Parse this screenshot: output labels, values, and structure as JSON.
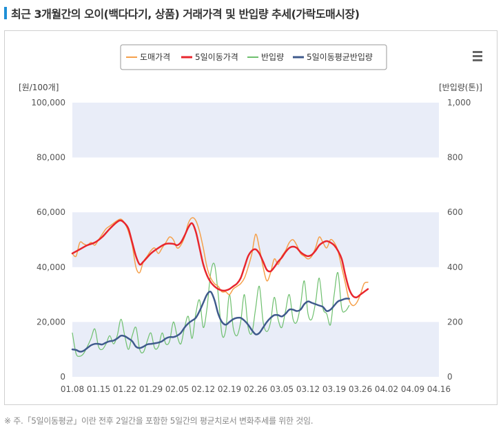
{
  "title": "최근 3개월간의 오이(백다다기, 상품) 거래가격 및 반입량 추세(가락도매시장)",
  "footnote": "※ 주.「5일이동평균」이란 전후 2일간을 포함한 5일간의 평균치로서 변화추세를 위한 것임.",
  "menu_icon": "hamburger-menu-icon",
  "chart_data": {
    "type": "line",
    "y_left_label": "[원/100개]",
    "y_right_label": "[반입량(톤)]",
    "y_left_ticks": [
      "0",
      "20,000",
      "40,000",
      "60,000",
      "80,000",
      "100,000"
    ],
    "y_right_ticks": [
      "0",
      "200",
      "400",
      "600",
      "800",
      "1,000"
    ],
    "y_left_range": [
      0,
      100000
    ],
    "y_right_range": [
      0,
      1000
    ],
    "x_ticks": [
      "01.08",
      "01.15",
      "01.22",
      "01.29",
      "02.05",
      "02.12",
      "02.19",
      "02.26",
      "03.05",
      "03.12",
      "03.19",
      "03.26",
      "04.02",
      "04.09",
      "04.16"
    ],
    "x_range_days": [
      0,
      98
    ],
    "grid": "alternating horizontal bands",
    "legend_position": "top-center",
    "series": [
      {
        "name": "도매가격",
        "axis": "left",
        "color": "#f5a04a",
        "points": [
          [
            0,
            45000
          ],
          [
            1,
            44000
          ],
          [
            2,
            49000
          ],
          [
            3,
            48500
          ],
          [
            4,
            48000
          ],
          [
            5,
            49000
          ],
          [
            6,
            48000
          ],
          [
            7,
            50000
          ],
          [
            8,
            52000
          ],
          [
            9,
            54000
          ],
          [
            10,
            55000
          ],
          [
            11,
            56000
          ],
          [
            12,
            57000
          ],
          [
            13,
            57500
          ],
          [
            14,
            56000
          ],
          [
            15,
            53000
          ],
          [
            16,
            48000
          ],
          [
            17,
            40000
          ],
          [
            18,
            38000
          ],
          [
            19,
            42000
          ],
          [
            20,
            44000
          ],
          [
            21,
            46000
          ],
          [
            22,
            47000
          ],
          [
            23,
            45000
          ],
          [
            24,
            47000
          ],
          [
            25,
            49000
          ],
          [
            26,
            51000
          ],
          [
            27,
            50000
          ],
          [
            28,
            47000
          ],
          [
            29,
            48000
          ],
          [
            30,
            51000
          ],
          [
            31,
            56000
          ],
          [
            32,
            58000
          ],
          [
            33,
            57000
          ],
          [
            34,
            53000
          ],
          [
            35,
            47000
          ],
          [
            36,
            40000
          ],
          [
            37,
            36000
          ],
          [
            38,
            34000
          ],
          [
            39,
            33000
          ],
          [
            40,
            31000
          ],
          [
            41,
            31000
          ],
          [
            42,
            30000
          ],
          [
            43,
            32000
          ],
          [
            44,
            33000
          ],
          [
            45,
            34000
          ],
          [
            46,
            36000
          ],
          [
            47,
            40000
          ],
          [
            48,
            45000
          ],
          [
            49,
            52000
          ],
          [
            50,
            47000
          ],
          [
            51,
            40000
          ],
          [
            52,
            35000
          ],
          [
            53,
            38000
          ],
          [
            54,
            43000
          ],
          [
            55,
            41000
          ],
          [
            56,
            44000
          ],
          [
            57,
            46000
          ],
          [
            58,
            49000
          ],
          [
            59,
            50000
          ],
          [
            60,
            48000
          ],
          [
            61,
            45000
          ],
          [
            62,
            44000
          ],
          [
            63,
            43000
          ],
          [
            64,
            44000
          ],
          [
            65,
            47000
          ],
          [
            66,
            51000
          ],
          [
            67,
            49000
          ],
          [
            68,
            47000
          ],
          [
            69,
            50000
          ],
          [
            70,
            49000
          ],
          [
            71,
            46000
          ],
          [
            72,
            40000
          ],
          [
            73,
            34000
          ],
          [
            74,
            28000
          ],
          [
            75,
            26000
          ],
          [
            76,
            27000
          ],
          [
            77,
            30000
          ],
          [
            78,
            34000
          ],
          [
            79,
            34500
          ]
        ]
      },
      {
        "name": "5일이동가격",
        "axis": "left",
        "color": "#e8262d",
        "points": [
          [
            0,
            45000
          ],
          [
            2,
            46500
          ],
          [
            4,
            48000
          ],
          [
            6,
            49000
          ],
          [
            8,
            51000
          ],
          [
            10,
            54000
          ],
          [
            12,
            56500
          ],
          [
            13,
            57000
          ],
          [
            14,
            56000
          ],
          [
            15,
            54000
          ],
          [
            16,
            49000
          ],
          [
            17,
            44000
          ],
          [
            18,
            41000
          ],
          [
            19,
            42000
          ],
          [
            21,
            45000
          ],
          [
            23,
            47000
          ],
          [
            25,
            48500
          ],
          [
            27,
            48500
          ],
          [
            28,
            48000
          ],
          [
            29,
            49000
          ],
          [
            30,
            51500
          ],
          [
            31,
            54500
          ],
          [
            32,
            56000
          ],
          [
            33,
            53000
          ],
          [
            34,
            47000
          ],
          [
            35,
            41000
          ],
          [
            36,
            37000
          ],
          [
            37,
            34500
          ],
          [
            38,
            33000
          ],
          [
            39,
            32000
          ],
          [
            40,
            31500
          ],
          [
            41,
            31500
          ],
          [
            42,
            32000
          ],
          [
            43,
            33000
          ],
          [
            44,
            34000
          ],
          [
            45,
            36000
          ],
          [
            46,
            40000
          ],
          [
            47,
            44000
          ],
          [
            48,
            46000
          ],
          [
            49,
            46500
          ],
          [
            50,
            45000
          ],
          [
            51,
            42000
          ],
          [
            52,
            39000
          ],
          [
            53,
            38500
          ],
          [
            54,
            40000
          ],
          [
            55,
            42000
          ],
          [
            56,
            43500
          ],
          [
            57,
            45500
          ],
          [
            58,
            47000
          ],
          [
            59,
            47500
          ],
          [
            60,
            47000
          ],
          [
            61,
            45500
          ],
          [
            62,
            44500
          ],
          [
            63,
            44000
          ],
          [
            64,
            44500
          ],
          [
            65,
            46000
          ],
          [
            66,
            48000
          ],
          [
            67,
            49000
          ],
          [
            68,
            49500
          ],
          [
            69,
            49000
          ],
          [
            70,
            48000
          ],
          [
            71,
            46000
          ],
          [
            72,
            43000
          ],
          [
            73,
            37000
          ],
          [
            74,
            32000
          ],
          [
            75,
            29500
          ],
          [
            76,
            29000
          ],
          [
            77,
            30000
          ],
          [
            78,
            31000
          ],
          [
            79,
            32000
          ]
        ]
      },
      {
        "name": "반입량",
        "axis": "right",
        "color": "#6dbf6d",
        "points": [
          [
            0,
            160
          ],
          [
            1,
            85
          ],
          [
            2,
            75
          ],
          [
            3,
            85
          ],
          [
            4,
            110
          ],
          [
            5,
            140
          ],
          [
            6,
            175
          ],
          [
            7,
            110
          ],
          [
            8,
            100
          ],
          [
            9,
            120
          ],
          [
            10,
            150
          ],
          [
            11,
            120
          ],
          [
            12,
            150
          ],
          [
            13,
            210
          ],
          [
            14,
            150
          ],
          [
            15,
            100
          ],
          [
            16,
            150
          ],
          [
            17,
            180
          ],
          [
            18,
            100
          ],
          [
            19,
            90
          ],
          [
            20,
            130
          ],
          [
            21,
            160
          ],
          [
            22,
            105
          ],
          [
            23,
            110
          ],
          [
            24,
            160
          ],
          [
            25,
            120
          ],
          [
            26,
            130
          ],
          [
            27,
            200
          ],
          [
            28,
            150
          ],
          [
            29,
            120
          ],
          [
            30,
            180
          ],
          [
            31,
            220
          ],
          [
            32,
            140
          ],
          [
            33,
            230
          ],
          [
            34,
            280
          ],
          [
            35,
            180
          ],
          [
            36,
            250
          ],
          [
            37,
            380
          ],
          [
            38,
            410
          ],
          [
            39,
            300
          ],
          [
            40,
            155
          ],
          [
            41,
            170
          ],
          [
            42,
            300
          ],
          [
            43,
            180
          ],
          [
            44,
            150
          ],
          [
            45,
            200
          ],
          [
            46,
            300
          ],
          [
            47,
            180
          ],
          [
            48,
            160
          ],
          [
            49,
            250
          ],
          [
            50,
            330
          ],
          [
            51,
            200
          ],
          [
            52,
            165
          ],
          [
            53,
            200
          ],
          [
            54,
            290
          ],
          [
            55,
            210
          ],
          [
            56,
            180
          ],
          [
            57,
            240
          ],
          [
            58,
            300
          ],
          [
            59,
            210
          ],
          [
            60,
            200
          ],
          [
            61,
            260
          ],
          [
            62,
            350
          ],
          [
            63,
            230
          ],
          [
            64,
            210
          ],
          [
            65,
            270
          ],
          [
            66,
            360
          ],
          [
            67,
            250
          ],
          [
            68,
            230
          ],
          [
            69,
            190
          ],
          [
            70,
            300
          ],
          [
            71,
            380
          ],
          [
            72,
            250
          ],
          [
            73,
            240
          ],
          [
            74,
            260
          ]
        ]
      },
      {
        "name": "5일이동평균반입량",
        "axis": "right",
        "color": "#3f5a8c",
        "points": [
          [
            0,
            100
          ],
          [
            1,
            98
          ],
          [
            2,
            92
          ],
          [
            3,
            95
          ],
          [
            4,
            105
          ],
          [
            5,
            115
          ],
          [
            6,
            120
          ],
          [
            7,
            120
          ],
          [
            8,
            118
          ],
          [
            9,
            125
          ],
          [
            10,
            130
          ],
          [
            11,
            132
          ],
          [
            12,
            140
          ],
          [
            13,
            150
          ],
          [
            14,
            148
          ],
          [
            15,
            140
          ],
          [
            16,
            130
          ],
          [
            17,
            110
          ],
          [
            18,
            105
          ],
          [
            19,
            110
          ],
          [
            20,
            118
          ],
          [
            21,
            120
          ],
          [
            22,
            122
          ],
          [
            23,
            125
          ],
          [
            24,
            130
          ],
          [
            25,
            140
          ],
          [
            26,
            145
          ],
          [
            27,
            145
          ],
          [
            28,
            150
          ],
          [
            29,
            160
          ],
          [
            30,
            180
          ],
          [
            31,
            195
          ],
          [
            32,
            205
          ],
          [
            33,
            215
          ],
          [
            34,
            240
          ],
          [
            35,
            270
          ],
          [
            36,
            300
          ],
          [
            37,
            310
          ],
          [
            38,
            280
          ],
          [
            39,
            230
          ],
          [
            40,
            200
          ],
          [
            41,
            190
          ],
          [
            42,
            200
          ],
          [
            43,
            210
          ],
          [
            44,
            215
          ],
          [
            45,
            215
          ],
          [
            46,
            205
          ],
          [
            47,
            190
          ],
          [
            48,
            170
          ],
          [
            49,
            155
          ],
          [
            50,
            160
          ],
          [
            51,
            180
          ],
          [
            52,
            200
          ],
          [
            53,
            215
          ],
          [
            54,
            225
          ],
          [
            55,
            225
          ],
          [
            56,
            220
          ],
          [
            57,
            230
          ],
          [
            58,
            245
          ],
          [
            59,
            245
          ],
          [
            60,
            240
          ],
          [
            61,
            245
          ],
          [
            62,
            265
          ],
          [
            63,
            275
          ],
          [
            64,
            270
          ],
          [
            65,
            265
          ],
          [
            66,
            260
          ],
          [
            67,
            255
          ],
          [
            68,
            240
          ],
          [
            69,
            245
          ],
          [
            70,
            260
          ],
          [
            71,
            275
          ],
          [
            72,
            280
          ],
          [
            73,
            285
          ],
          [
            74,
            285
          ]
        ]
      }
    ]
  }
}
